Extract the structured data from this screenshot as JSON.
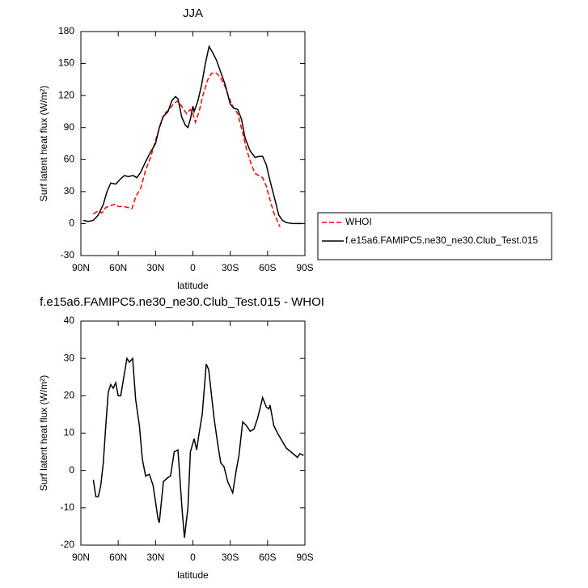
{
  "chart_data": [
    {
      "type": "line",
      "title": "JJA",
      "xlabel": "latitude",
      "ylabel": "Surf latent heat flux (W/m²)",
      "xlim": [
        90,
        -90
      ],
      "xticks": [
        {
          "value": 90,
          "label": "90N"
        },
        {
          "value": 60,
          "label": "60N"
        },
        {
          "value": 30,
          "label": "30N"
        },
        0,
        {
          "value": -30,
          "label": "30S"
        },
        {
          "value": -60,
          "label": "60S"
        },
        {
          "value": -90,
          "label": "90S"
        }
      ],
      "ylim": [
        -30,
        180
      ],
      "yticks": [
        -30,
        0,
        30,
        60,
        90,
        120,
        150,
        180
      ],
      "legend": "outside-right",
      "series": [
        {
          "name": "WHOI",
          "color": "#ff0000",
          "line_style": "dashed",
          "x": [
            80,
            76,
            73,
            70,
            66,
            63,
            60,
            56,
            52,
            49,
            46,
            42,
            38,
            34,
            30,
            26,
            23,
            19,
            15,
            12,
            8,
            5,
            2,
            0,
            -2,
            -5,
            -8,
            -12,
            -15,
            -19,
            -22,
            -26,
            -29,
            -32,
            -36,
            -40,
            -43,
            -47,
            -50,
            -53,
            -56,
            -59,
            -62,
            -65,
            -68,
            -70
          ],
          "values": [
            9,
            12,
            10,
            15,
            17,
            18,
            16,
            16,
            15,
            14,
            25,
            33,
            50,
            62,
            78,
            93,
            103,
            107,
            113,
            115,
            108,
            103,
            107,
            103,
            95,
            105,
            120,
            135,
            141,
            141,
            137,
            128,
            118,
            110,
            103,
            85,
            70,
            55,
            47,
            45,
            43,
            35,
            22,
            10,
            2,
            -3
          ]
        },
        {
          "name": "f.e15a6.FAMIPC5.ne30_ne30.Club_Test.015",
          "color": "#000000",
          "line_style": "solid",
          "x": [
            88,
            84,
            80,
            76,
            72,
            69,
            66,
            62,
            58,
            55,
            52,
            48,
            45,
            42,
            38,
            34,
            30,
            27,
            24,
            20,
            17,
            14,
            12,
            9,
            6,
            4,
            2,
            0,
            -1,
            -4,
            -7,
            -10,
            -13,
            -16,
            -19,
            -22,
            -26,
            -30,
            -33,
            -36,
            -39,
            -42,
            -46,
            -50,
            -53,
            -56,
            -59,
            -62,
            -66,
            -69,
            -72,
            -75,
            -80,
            -84,
            -88
          ],
          "values": [
            3,
            2,
            3,
            8,
            18,
            30,
            38,
            37,
            42,
            45,
            44,
            45,
            43,
            48,
            58,
            67,
            75,
            90,
            100,
            105,
            115,
            119,
            117,
            100,
            92,
            90,
            98,
            110,
            105,
            115,
            130,
            150,
            166,
            160,
            153,
            143,
            130,
            112,
            108,
            107,
            98,
            80,
            68,
            62,
            63,
            63,
            55,
            40,
            22,
            8,
            3,
            1,
            0,
            0,
            0
          ]
        }
      ]
    },
    {
      "type": "line",
      "title": "f.e15a6.FAMIPC5.ne30_ne30.Club_Test.015 - WHOI",
      "xlabel": "latitude",
      "ylabel": "Surf latent heat flux (W/m²)",
      "xlim": [
        90,
        -90
      ],
      "xticks": [
        {
          "value": 90,
          "label": "90N"
        },
        {
          "value": 60,
          "label": "60N"
        },
        {
          "value": 30,
          "label": "30N"
        },
        0,
        {
          "value": -30,
          "label": "30S"
        },
        {
          "value": -60,
          "label": "60S"
        },
        {
          "value": -90,
          "label": "90S"
        }
      ],
      "ylim": [
        -20,
        40
      ],
      "yticks": [
        -20,
        -10,
        0,
        10,
        20,
        30,
        40
      ],
      "series": [
        {
          "color": "#000000",
          "line_style": "solid",
          "x": [
            80,
            78,
            76,
            74,
            72,
            70,
            68,
            66,
            64,
            62,
            60,
            58,
            56,
            53,
            51,
            48.4,
            46,
            43,
            40.6,
            38,
            35,
            32,
            28,
            27,
            23.7,
            20.5,
            18,
            15,
            12,
            8.8,
            6.8,
            4,
            2,
            -1,
            -3,
            -5,
            -7.5,
            -10.7,
            -12.7,
            -15,
            -17,
            -20,
            -22.4,
            -25,
            -28,
            -32,
            -34.8,
            -37,
            -40,
            -43,
            -46,
            -49,
            -52,
            -56,
            -59,
            -61,
            -62,
            -65,
            -68,
            -75,
            -84,
            -86,
            -89
          ],
          "values": [
            -2.5,
            -7,
            -7,
            -4,
            2,
            12,
            21,
            23,
            22,
            23.5,
            20,
            20,
            24,
            30,
            29,
            30,
            19,
            12,
            3,
            -1.5,
            -1,
            -4,
            -13,
            -14,
            -3,
            -2,
            -1.5,
            5,
            5.5,
            -10,
            -18,
            -10,
            5,
            8.5,
            5.5,
            10,
            15,
            28.5,
            27,
            20,
            14,
            7,
            2,
            1,
            -3,
            -6,
            0,
            4,
            13,
            12,
            10.5,
            11,
            14,
            19.5,
            17,
            16.5,
            17.5,
            12,
            10,
            6,
            3.5,
            4.5,
            4
          ]
        }
      ]
    }
  ]
}
